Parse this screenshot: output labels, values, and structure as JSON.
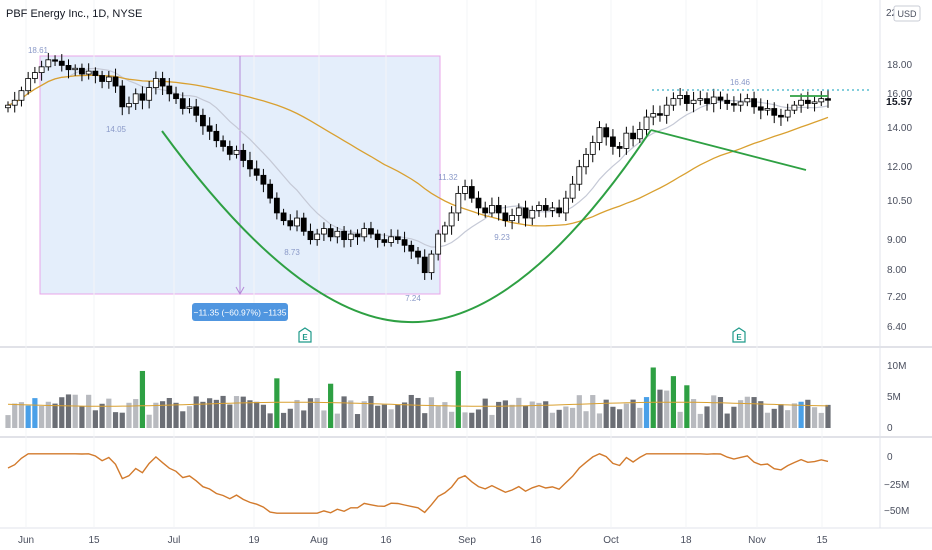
{
  "header": {
    "symbol_title": "PBF Energy Inc., 1D, NYSE"
  },
  "price_axis": {
    "top_value": "22",
    "currency": "USD",
    "ticks": [
      "18.00",
      "16.00",
      "14.00",
      "12.00",
      "10.50",
      "9.00",
      "8.00",
      "7.20",
      "6.40"
    ],
    "last_price": "15.57"
  },
  "volume_axis": {
    "ticks": [
      "10M",
      "5M",
      "0"
    ]
  },
  "oscillator_axis": {
    "ticks": [
      "0",
      "−25M",
      "−50M"
    ]
  },
  "time_axis": {
    "ticks": [
      "Jun",
      "15",
      "Jul",
      "19",
      "Aug",
      "16",
      "Sep",
      "16",
      "Oct",
      "18",
      "Nov",
      "15"
    ]
  },
  "annotations": {
    "measure_label": "−11.35 (−60.97%) −1135",
    "peak_high": "18.61",
    "low_1": "14.05",
    "low_2": "8.73",
    "high_2": "11.32",
    "low_3": "9.23",
    "bottom_low": "7.24",
    "high_right": "16.46",
    "earnings_marker": "E"
  },
  "colors": {
    "up_candle": "#ffffff",
    "down_candle": "#000000",
    "ma_slow": "#d9a030",
    "ma_fast": "#c5c9d6",
    "cup_line": "#2ea043",
    "resistance": "#3ab0c8",
    "measure_box": "#d8e8f8",
    "oscillator": "#d27a2c",
    "volume_high": "#2ea043",
    "volume_blue": "#4aa0e8"
  },
  "chart_data": {
    "type": "candlestick",
    "title": "PBF Energy Inc., 1D, NYSE",
    "price_range": [
      6.2,
      22
    ],
    "log_scale": true,
    "candles_close_approx": [
      15.3,
      15.6,
      16.2,
      17.0,
      17.4,
      17.8,
      18.3,
      18.2,
      17.9,
      17.6,
      17.7,
      17.3,
      17.5,
      17.2,
      16.8,
      17.1,
      16.5,
      15.2,
      15.4,
      16.0,
      15.6,
      16.4,
      17.0,
      16.5,
      16.0,
      15.7,
      15.1,
      15.2,
      14.7,
      14.1,
      13.8,
      13.3,
      13.0,
      12.6,
      12.8,
      12.3,
      11.9,
      11.6,
      11.2,
      10.6,
      10.0,
      9.7,
      9.5,
      9.8,
      9.3,
      9.0,
      9.2,
      9.4,
      9.1,
      9.3,
      9.0,
      9.2,
      9.1,
      9.4,
      9.2,
      9.0,
      8.9,
      9.1,
      9.0,
      8.8,
      8.6,
      8.4,
      7.9,
      8.5,
      9.2,
      9.5,
      10.0,
      10.8,
      11.1,
      10.6,
      10.2,
      10.0,
      10.3,
      10.0,
      9.7,
      9.9,
      10.2,
      9.8,
      10.1,
      10.3,
      10.1,
      10.2,
      10.0,
      10.6,
      11.2,
      12.0,
      12.6,
      13.2,
      14.0,
      13.5,
      13.0,
      12.9,
      13.7,
      13.4,
      13.9,
      14.6,
      14.8,
      14.7,
      15.3,
      15.7,
      15.9,
      15.4,
      15.6,
      15.7,
      15.4,
      15.8,
      15.6,
      15.4,
      15.3,
      15.5,
      15.7,
      15.2,
      15.0,
      15.1,
      14.7,
      14.6,
      15.0,
      15.3,
      15.6,
      15.4,
      15.5,
      15.7,
      15.6
    ],
    "volume_range": [
      0,
      12
    ],
    "volume_unit": "M",
    "oscillator_range": [
      -55,
      5
    ],
    "oscillator_unit": "M"
  }
}
